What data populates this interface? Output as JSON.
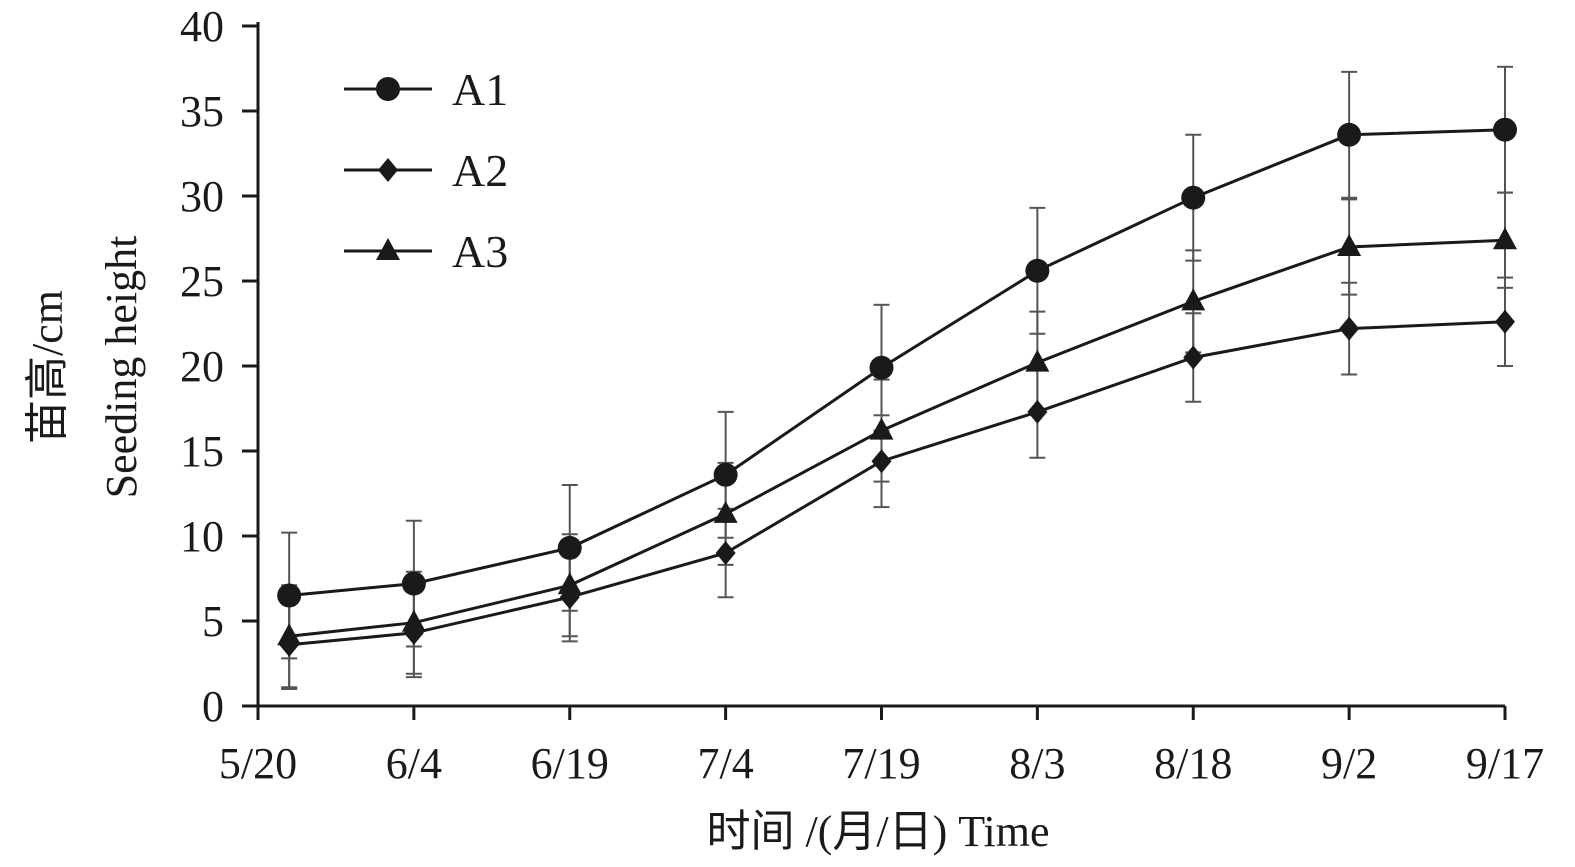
{
  "chart_data": {
    "type": "line",
    "title": "",
    "xlabel": "时间 /(月/日) Time",
    "ylabel_lines": [
      "苗高/cm",
      "Seeding height"
    ],
    "ylim": [
      0,
      40
    ],
    "yticks": [
      "0",
      "5",
      "10",
      "15",
      "20",
      "25",
      "30",
      "35",
      "40"
    ],
    "xticks": [
      "5/20",
      "6/4",
      "6/19",
      "7/4",
      "7/19",
      "8/3",
      "8/18",
      "9/2",
      "9/17"
    ],
    "x_dates": [
      "5/23",
      "6/4",
      "6/19",
      "7/4",
      "7/19",
      "8/3",
      "8/18",
      "9/2",
      "9/17"
    ],
    "legend_position": "top-left",
    "grid": false,
    "series": [
      {
        "name": "A1",
        "marker": "circle",
        "values": [
          6.5,
          7.2,
          9.3,
          13.6,
          19.9,
          25.6,
          29.9,
          33.6,
          33.9
        ],
        "errors": [
          3.7,
          3.7,
          3.7,
          3.7,
          3.7,
          3.7,
          3.7,
          3.7,
          3.7
        ]
      },
      {
        "name": "A2",
        "marker": "diamond",
        "values": [
          3.6,
          4.3,
          6.4,
          9.0,
          14.4,
          17.3,
          20.5,
          22.2,
          22.6
        ],
        "errors": [
          2.6,
          2.6,
          2.6,
          2.6,
          2.7,
          2.7,
          2.6,
          2.7,
          2.6
        ]
      },
      {
        "name": "A3",
        "marker": "triangle",
        "values": [
          4.1,
          4.9,
          7.1,
          11.3,
          16.2,
          20.2,
          23.8,
          27.0,
          27.4
        ],
        "errors": [
          3.0,
          3.0,
          3.0,
          3.0,
          3.0,
          3.0,
          3.0,
          2.8,
          2.8
        ]
      }
    ],
    "line_color": "#1a1a1a",
    "errorbar_color": "#555555"
  }
}
